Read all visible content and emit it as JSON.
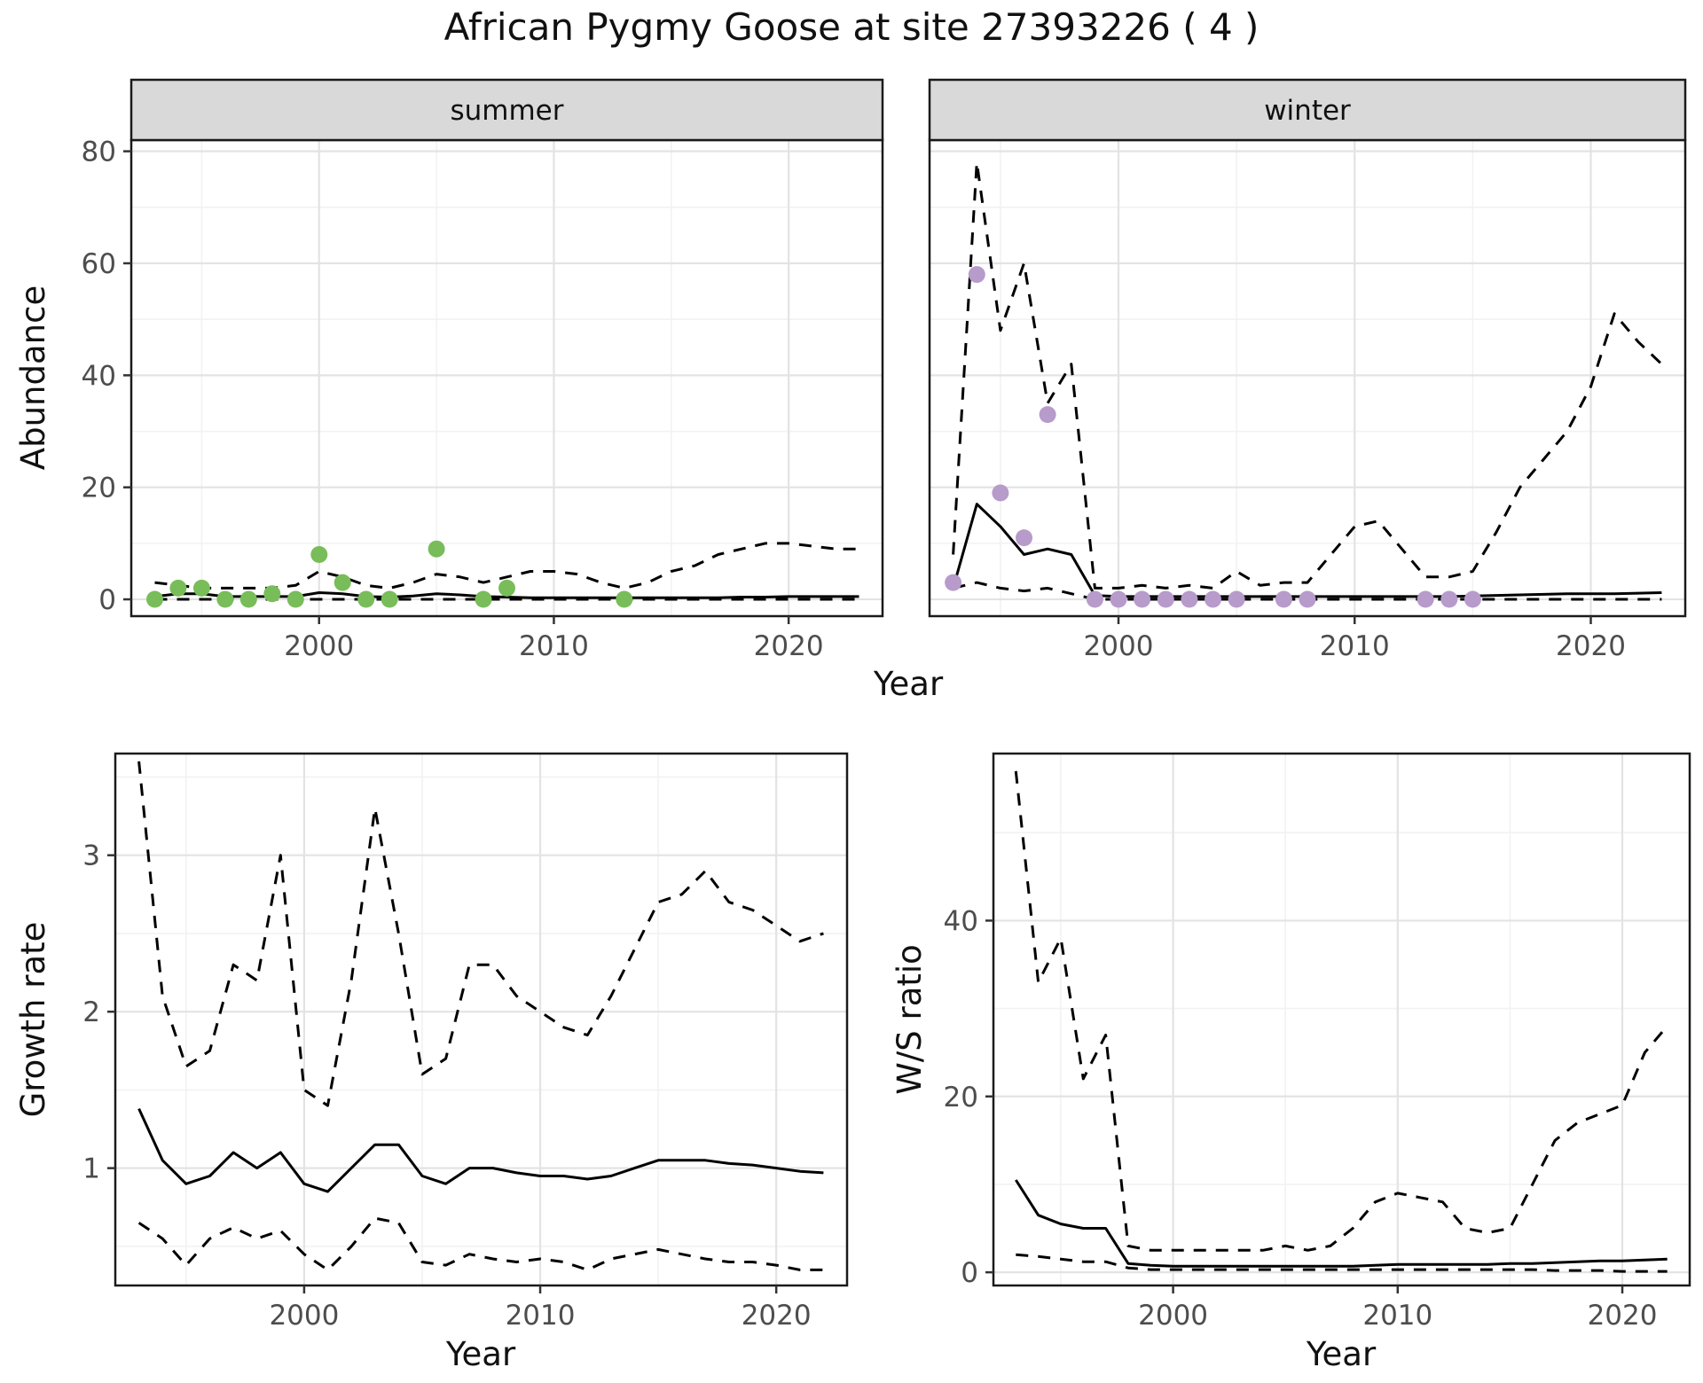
{
  "title": "African Pygmy Goose at site 27393226 ( 4 )",
  "labels": {
    "abundance": "Abundance",
    "year": "Year",
    "growth_rate": "Growth rate",
    "ws_ratio": "W/S ratio"
  },
  "colors": {
    "line": "#000000",
    "panel_bg": "#ffffff",
    "strip_bg": "#d9d9d9",
    "panel_border": "#1a1a1a",
    "grid_major": "#e3e3e3",
    "grid_minor": "#f2f2f2",
    "tick_text": "#4d4d4d",
    "summer_point": "#78bd59",
    "winter_point": "#b79bcb"
  },
  "chart_data": [
    {
      "id": "abundance-summer",
      "type": "line",
      "facet_label": "summer",
      "xlabel": "Year",
      "ylabel": "Abundance",
      "xlim": [
        1992,
        2024
      ],
      "ylim": [
        -3,
        82
      ],
      "xticks": [
        2000,
        2010,
        2020
      ],
      "xticks_minor": [
        1995,
        2005,
        2015
      ],
      "yticks": [
        0,
        20,
        40,
        60,
        80
      ],
      "yticks_minor": [
        10,
        30,
        50,
        70
      ],
      "x": [
        1993,
        1994,
        1995,
        1996,
        1997,
        1998,
        1999,
        2000,
        2001,
        2002,
        2003,
        2004,
        2005,
        2006,
        2007,
        2008,
        2009,
        2010,
        2011,
        2012,
        2013,
        2014,
        2015,
        2016,
        2017,
        2018,
        2019,
        2020,
        2021,
        2022,
        2023
      ],
      "series": [
        {
          "name": "median",
          "style": "solid",
          "values": [
            0.5,
            1,
            1,
            0.5,
            0.5,
            0.5,
            0.5,
            1.2,
            1,
            0.5,
            0.4,
            0.6,
            1,
            0.8,
            0.5,
            0.4,
            0.3,
            0.3,
            0.3,
            0.3,
            0.3,
            0.3,
            0.3,
            0.3,
            0.3,
            0.4,
            0.4,
            0.5,
            0.5,
            0.5,
            0.5
          ]
        },
        {
          "name": "upper_ci",
          "style": "dashed",
          "values": [
            3,
            2.5,
            2,
            2,
            2,
            2,
            2.5,
            5,
            4,
            2.5,
            2,
            3,
            4.5,
            4,
            3,
            4,
            5,
            5,
            4.5,
            3,
            2,
            3,
            5,
            6,
            8,
            9,
            10,
            10,
            9.5,
            9,
            9
          ]
        },
        {
          "name": "lower_ci",
          "style": "dashed",
          "values": [
            0,
            0,
            0,
            0,
            0,
            0,
            0,
            0,
            0,
            0,
            0,
            0,
            0,
            0,
            0,
            0,
            0,
            0,
            0,
            0,
            0,
            0,
            0,
            0,
            0,
            0,
            0,
            0,
            0,
            0,
            0
          ]
        }
      ],
      "points": {
        "label": "observed counts",
        "color_ref": "summer_point",
        "x": [
          1993,
          1994,
          1995,
          1996,
          1997,
          1998,
          1999,
          2000,
          2001,
          2002,
          2003,
          2005,
          2007,
          2008,
          2013
        ],
        "y": [
          0,
          2,
          2,
          0,
          0,
          1,
          0,
          8,
          3,
          0,
          0,
          9,
          0,
          2,
          0
        ]
      }
    },
    {
      "id": "abundance-winter",
      "type": "line",
      "facet_label": "winter",
      "xlabel": "Year",
      "ylabel": "Abundance",
      "xlim": [
        1992,
        2024
      ],
      "ylim": [
        -3,
        82
      ],
      "xticks": [
        2000,
        2010,
        2020
      ],
      "xticks_minor": [
        1995,
        2005,
        2015
      ],
      "yticks": [
        0,
        20,
        40,
        60,
        80
      ],
      "yticks_minor": [
        10,
        30,
        50,
        70
      ],
      "x": [
        1993,
        1994,
        1995,
        1996,
        1997,
        1998,
        1999,
        2000,
        2001,
        2002,
        2003,
        2004,
        2005,
        2006,
        2007,
        2008,
        2009,
        2010,
        2011,
        2012,
        2013,
        2014,
        2015,
        2016,
        2017,
        2018,
        2019,
        2020,
        2021,
        2022,
        2023
      ],
      "series": [
        {
          "name": "median",
          "style": "solid",
          "values": [
            2,
            17,
            13,
            8,
            9,
            8,
            0.7,
            0.5,
            0.5,
            0.5,
            0.5,
            0.5,
            0.5,
            0.5,
            0.5,
            0.5,
            0.5,
            0.5,
            0.5,
            0.5,
            0.5,
            0.5,
            0.6,
            0.7,
            0.8,
            0.9,
            1,
            1,
            1,
            1.1,
            1.2
          ]
        },
        {
          "name": "upper_ci",
          "style": "dashed",
          "values": [
            8,
            78,
            48,
            60,
            35,
            42,
            2,
            2,
            2.5,
            2,
            2.5,
            2,
            5,
            2.5,
            3,
            3,
            8,
            13,
            14,
            9,
            4,
            4,
            5,
            12,
            20,
            25,
            30,
            38,
            51,
            46,
            42
          ]
        },
        {
          "name": "lower_ci",
          "style": "dashed",
          "values": [
            2,
            3,
            2,
            1.5,
            2,
            1,
            0,
            0,
            0,
            0,
            0,
            0,
            0,
            0,
            0,
            0,
            0,
            0,
            0,
            0,
            0,
            0,
            0,
            0,
            0,
            0,
            0,
            0,
            0,
            0,
            0
          ]
        }
      ],
      "points": {
        "label": "observed counts",
        "color_ref": "winter_point",
        "x": [
          1993,
          1994,
          1995,
          1996,
          1997,
          1999,
          2000,
          2001,
          2002,
          2003,
          2004,
          2005,
          2007,
          2008,
          2013,
          2014,
          2015
        ],
        "y": [
          3,
          58,
          19,
          11,
          33,
          0,
          0,
          0,
          0,
          0,
          0,
          0,
          0,
          0,
          0,
          0,
          0
        ]
      }
    },
    {
      "id": "growth-rate",
      "type": "line",
      "facet_label": null,
      "xlabel": "Year",
      "ylabel": "Growth rate",
      "xlim": [
        1992,
        2023
      ],
      "ylim": [
        0.25,
        3.65
      ],
      "xticks": [
        2000,
        2010,
        2020
      ],
      "xticks_minor": [
        1995,
        2005,
        2015
      ],
      "yticks": [
        1,
        2,
        3
      ],
      "yticks_minor": [
        0.5,
        1.5,
        2.5,
        3.5
      ],
      "x": [
        1993,
        1994,
        1995,
        1996,
        1997,
        1998,
        1999,
        2000,
        2001,
        2002,
        2003,
        2004,
        2005,
        2006,
        2007,
        2008,
        2009,
        2010,
        2011,
        2012,
        2013,
        2014,
        2015,
        2016,
        2017,
        2018,
        2019,
        2020,
        2021,
        2022
      ],
      "series": [
        {
          "name": "median",
          "style": "solid",
          "values": [
            1.38,
            1.05,
            0.9,
            0.95,
            1.1,
            1.0,
            1.1,
            0.9,
            0.85,
            1.0,
            1.15,
            1.15,
            0.95,
            0.9,
            1.0,
            1.0,
            0.97,
            0.95,
            0.95,
            0.93,
            0.95,
            1.0,
            1.05,
            1.05,
            1.05,
            1.03,
            1.02,
            1.0,
            0.98,
            0.97
          ]
        },
        {
          "name": "upper_ci",
          "style": "dashed",
          "values": [
            3.6,
            2.1,
            1.65,
            1.75,
            2.3,
            2.2,
            3.0,
            1.5,
            1.4,
            2.2,
            3.3,
            2.5,
            1.6,
            1.7,
            2.3,
            2.3,
            2.1,
            2.0,
            1.9,
            1.85,
            2.1,
            2.4,
            2.7,
            2.75,
            2.9,
            2.7,
            2.65,
            2.55,
            2.45,
            2.5
          ]
        },
        {
          "name": "lower_ci",
          "style": "dashed",
          "values": [
            0.65,
            0.55,
            0.38,
            0.55,
            0.62,
            0.55,
            0.6,
            0.45,
            0.35,
            0.5,
            0.68,
            0.65,
            0.4,
            0.38,
            0.45,
            0.42,
            0.4,
            0.42,
            0.4,
            0.35,
            0.42,
            0.45,
            0.48,
            0.45,
            0.42,
            0.4,
            0.4,
            0.38,
            0.35,
            0.35
          ]
        }
      ],
      "points": null
    },
    {
      "id": "ws-ratio",
      "type": "line",
      "facet_label": null,
      "xlabel": "Year",
      "ylabel": "W/S ratio",
      "xlim": [
        1992,
        2023
      ],
      "ylim": [
        -1.5,
        59
      ],
      "xticks": [
        2000,
        2010,
        2020
      ],
      "xticks_minor": [
        1995,
        2005,
        2015
      ],
      "yticks": [
        0,
        20,
        40
      ],
      "yticks_minor": [
        10,
        30,
        50
      ],
      "x": [
        1993,
        1994,
        1995,
        1996,
        1997,
        1998,
        1999,
        2000,
        2001,
        2002,
        2003,
        2004,
        2005,
        2006,
        2007,
        2008,
        2009,
        2010,
        2011,
        2012,
        2013,
        2014,
        2015,
        2016,
        2017,
        2018,
        2019,
        2020,
        2021,
        2022
      ],
      "series": [
        {
          "name": "median",
          "style": "solid",
          "values": [
            10.5,
            6.5,
            5.5,
            5,
            5,
            1,
            0.8,
            0.7,
            0.7,
            0.7,
            0.7,
            0.7,
            0.7,
            0.7,
            0.7,
            0.7,
            0.8,
            0.9,
            0.9,
            0.9,
            0.9,
            0.9,
            1,
            1,
            1.1,
            1.2,
            1.3,
            1.3,
            1.4,
            1.5
          ]
        },
        {
          "name": "upper_ci",
          "style": "dashed",
          "values": [
            57,
            33,
            38,
            22,
            27,
            3,
            2.5,
            2.5,
            2.5,
            2.5,
            2.5,
            2.5,
            3,
            2.5,
            3,
            5,
            8,
            9,
            8.5,
            8,
            5,
            4.5,
            5,
            10,
            15,
            17,
            18,
            19,
            25,
            28
          ]
        },
        {
          "name": "lower_ci",
          "style": "dashed",
          "values": [
            2,
            1.8,
            1.5,
            1.2,
            1.2,
            0.5,
            0.3,
            0.3,
            0.3,
            0.3,
            0.3,
            0.3,
            0.3,
            0.3,
            0.3,
            0.3,
            0.3,
            0.3,
            0.3,
            0.3,
            0.3,
            0.3,
            0.3,
            0.3,
            0.2,
            0.2,
            0.2,
            0.1,
            0.1,
            0.1
          ]
        }
      ],
      "points": null
    }
  ]
}
